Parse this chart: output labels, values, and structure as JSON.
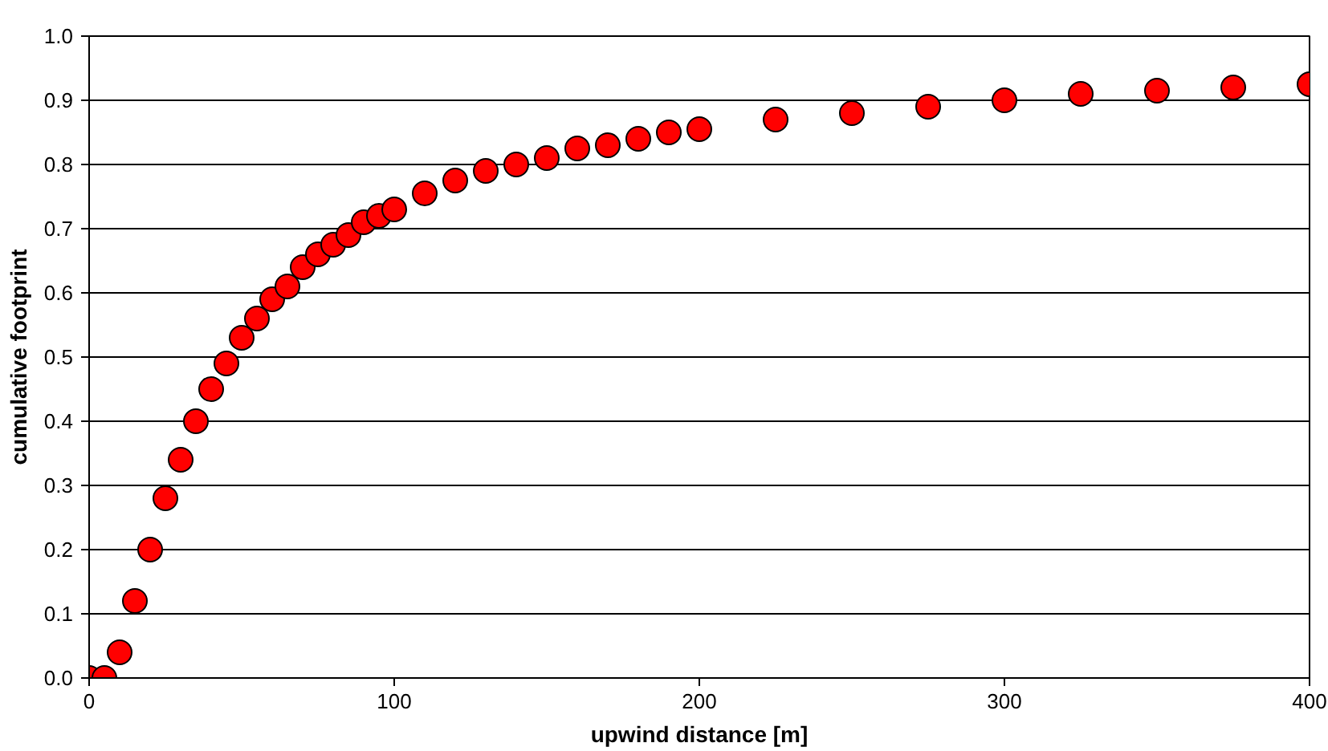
{
  "chart_data": {
    "type": "scatter",
    "xlabel": "upwind distance [m]",
    "ylabel": "cumulative footprint",
    "x": [
      0,
      5,
      10,
      15,
      20,
      25,
      30,
      35,
      40,
      45,
      50,
      55,
      60,
      65,
      70,
      75,
      80,
      85,
      90,
      95,
      100,
      110,
      120,
      130,
      140,
      150,
      160,
      170,
      180,
      190,
      200,
      225,
      250,
      275,
      300,
      325,
      350,
      375,
      400
    ],
    "series": [
      {
        "color": "#ff0000",
        "values": [
          0.0,
          0.0,
          0.04,
          0.12,
          0.2,
          0.28,
          0.34,
          0.4,
          0.45,
          0.49,
          0.53,
          0.56,
          0.59,
          0.61,
          0.64,
          0.66,
          0.675,
          0.69,
          0.71,
          0.72,
          0.73,
          0.755,
          0.775,
          0.79,
          0.8,
          0.81,
          0.825,
          0.83,
          0.84,
          0.85,
          0.855,
          0.87,
          0.88,
          0.89,
          0.9,
          0.91,
          0.915,
          0.92,
          0.925
        ]
      }
    ],
    "xlim": [
      0,
      400
    ],
    "ylim": [
      0,
      1.0
    ],
    "xticks": [
      0,
      100,
      200,
      300,
      400
    ],
    "yticks": [
      {
        "value": 0,
        "label": "0.0"
      },
      0.1,
      0.2,
      0.3,
      0.4,
      0.5,
      0.6,
      0.7,
      0.8,
      0.9,
      {
        "value": 1,
        "label": "1.0"
      }
    ],
    "grid": "y",
    "marker": "circle"
  }
}
